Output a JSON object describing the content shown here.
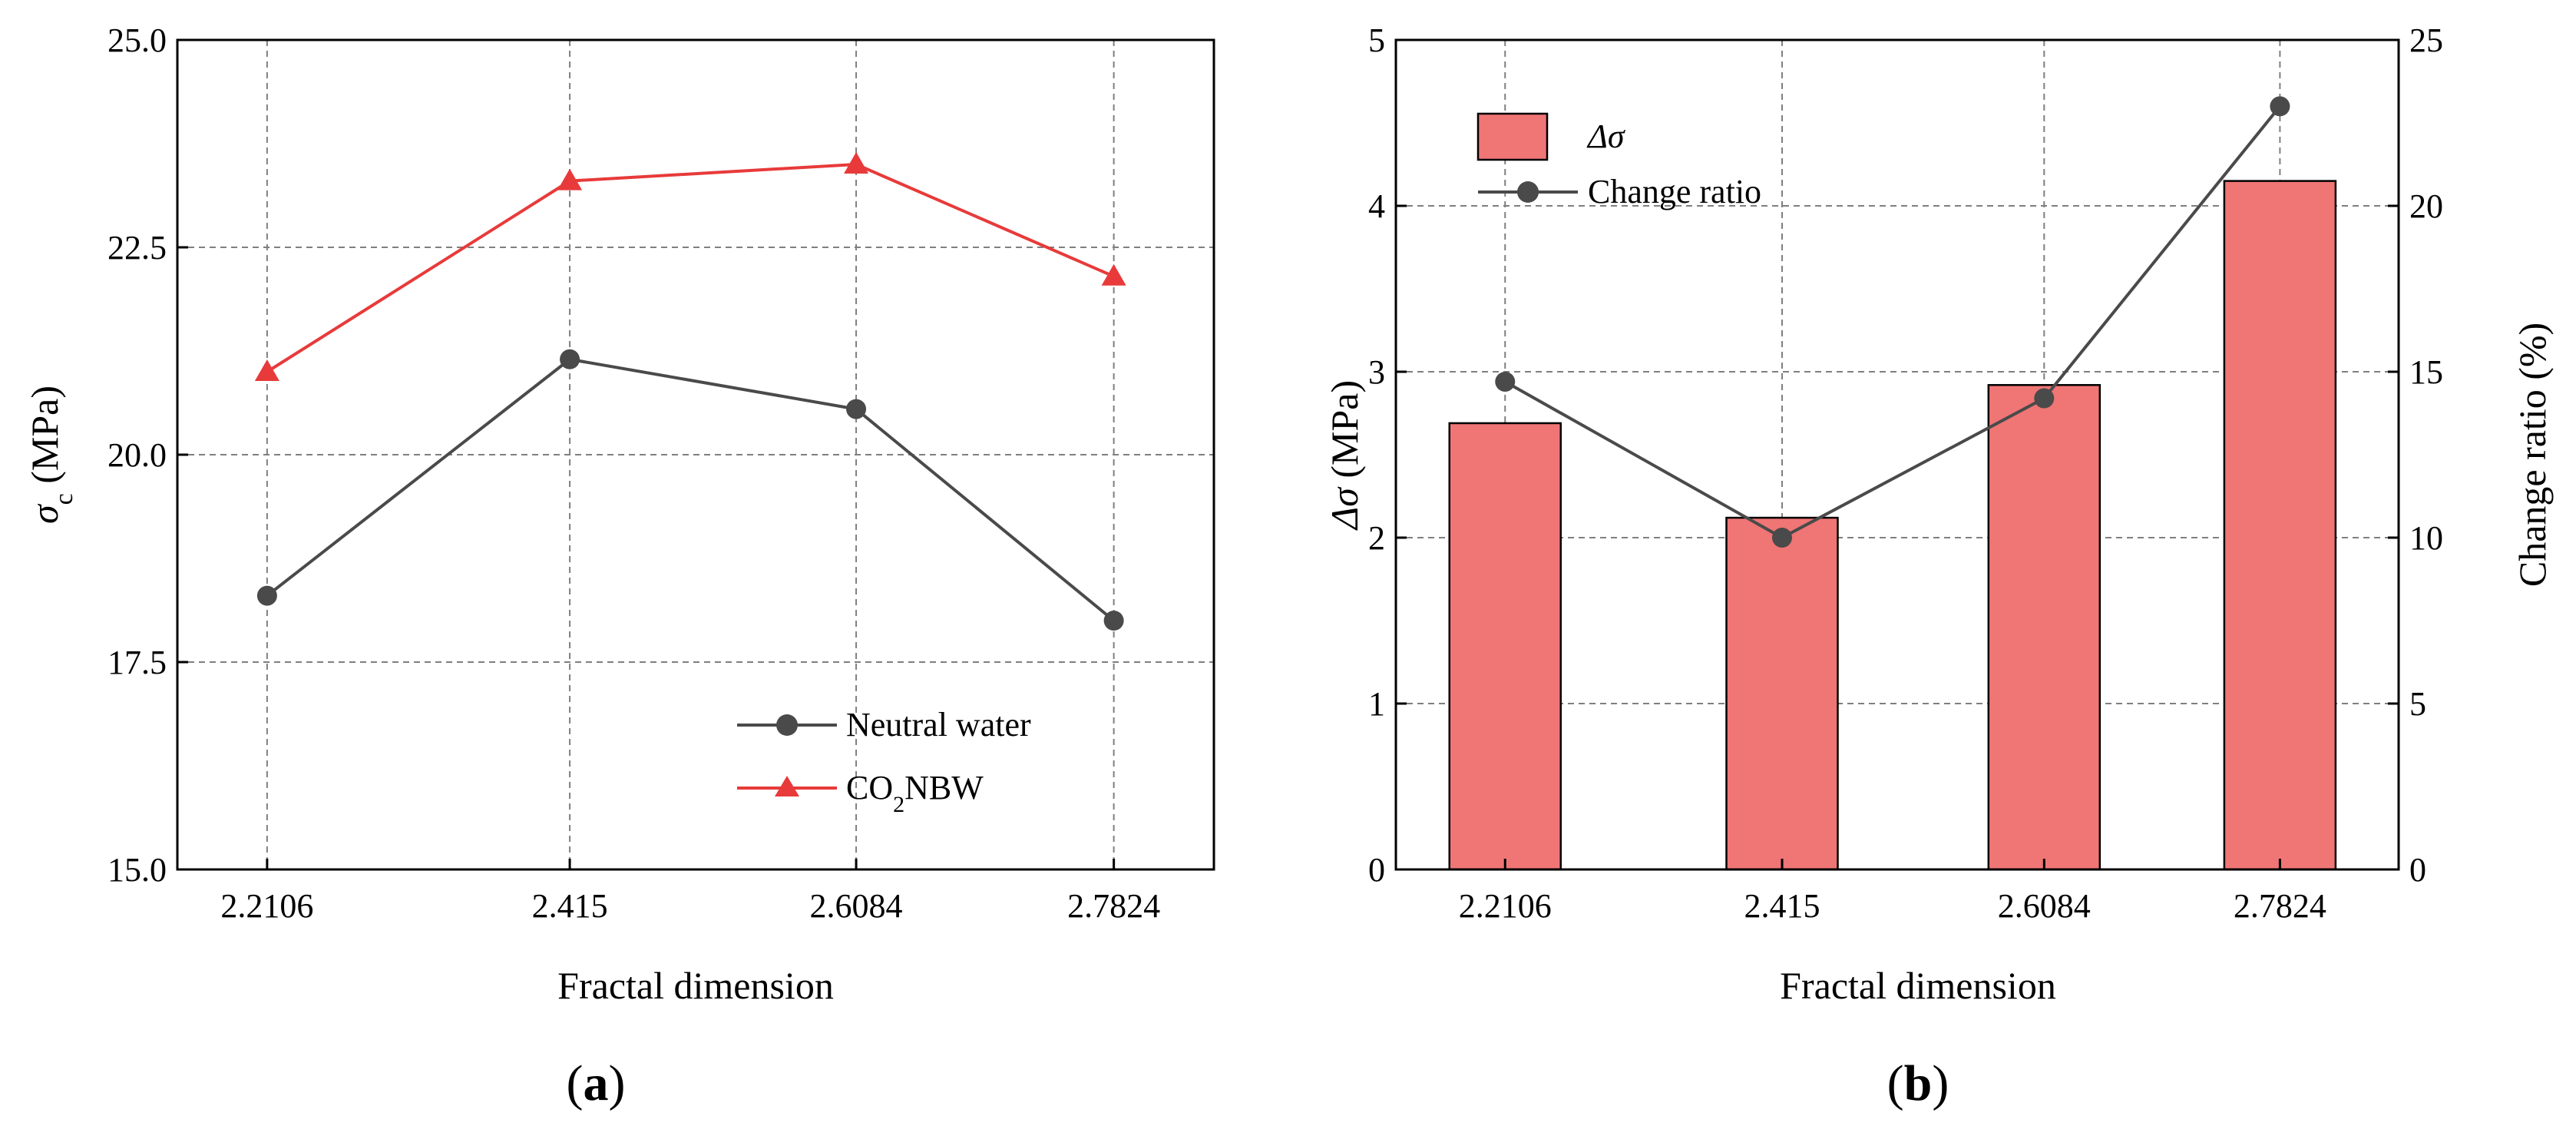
{
  "chart_data": [
    {
      "panel": "a",
      "type": "line",
      "categories": [
        "2.2106",
        "2.415",
        "2.6084",
        "2.7824"
      ],
      "x": [
        2.2106,
        2.415,
        2.6084,
        2.7824
      ],
      "xlim": [
        2.15,
        2.85
      ],
      "ylim": [
        15.0,
        25.0
      ],
      "yticks": [
        15.0,
        17.5,
        20.0,
        22.5,
        25.0
      ],
      "ytick_labels": [
        "15.0",
        "17.5",
        "20.0",
        "22.5",
        "25.0"
      ],
      "xlabel": "Fractal dimension",
      "ylabel_main": "σ",
      "ylabel_sub": "c",
      "ylabel_unit": " (MPa)",
      "grid": true,
      "legend_position": "bottom-right",
      "series": [
        {
          "name": "Neutral water",
          "color": "#4a4a4a",
          "marker": "circle",
          "values": [
            18.3,
            21.15,
            20.55,
            18.0
          ]
        },
        {
          "name": "CO2NBW",
          "name_parts": [
            "CO",
            "2",
            "NBW"
          ],
          "color": "#e83a3a",
          "marker": "triangle",
          "values": [
            21.0,
            23.3,
            23.5,
            22.15
          ]
        }
      ],
      "panel_label": "a"
    },
    {
      "panel": "b",
      "type": "bar+line",
      "categories": [
        "2.2106",
        "2.415",
        "2.6084",
        "2.7824"
      ],
      "x": [
        2.2106,
        2.415,
        2.6084,
        2.7824
      ],
      "xlim": [
        2.13,
        2.87
      ],
      "xlabel": "Fractal dimension",
      "ylabel_left_main": "Δσ",
      "ylabel_left_unit": " (MPa)",
      "ylim_left": [
        0,
        5
      ],
      "yticks_left": [
        0,
        1,
        2,
        3,
        4,
        5
      ],
      "ytick_labels_left": [
        "0",
        "1",
        "2",
        "3",
        "4",
        "5"
      ],
      "ylabel_right": "Change ratio (%)",
      "ylim_right": [
        0,
        25
      ],
      "yticks_right": [
        0,
        5,
        10,
        15,
        20,
        25
      ],
      "ytick_labels_right": [
        "0",
        "5",
        "10",
        "15",
        "20",
        "25"
      ],
      "grid": true,
      "legend_position": "top-left",
      "bar_series": {
        "name": "Δσ",
        "color": "#f07575",
        "values": [
          2.69,
          2.12,
          2.92,
          4.15
        ]
      },
      "line_series": {
        "name": "Change ratio",
        "color": "#4a4a4a",
        "marker": "circle",
        "values": [
          14.7,
          10.0,
          14.2,
          23.0
        ]
      },
      "panel_label": "b"
    }
  ]
}
